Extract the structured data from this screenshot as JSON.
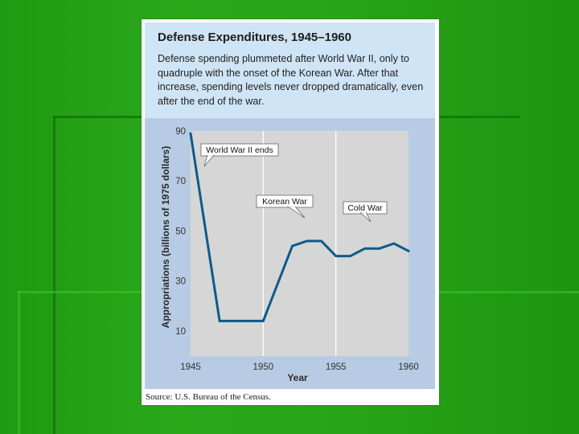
{
  "header": {
    "title": "Defense Expenditures, 1945–1960",
    "description": "Defense spending plummeted after World War II, only to quadruple with the onset of the Korean War. After that increase, spending levels never dropped dramatically, even after the end of the war."
  },
  "footer": {
    "source": "Source: U.S. Bureau of the Census."
  },
  "colors": {
    "line": "#0e5a8c",
    "plot_background": "#d6d6d6",
    "frame_background": "#b7cce4",
    "header_background": "#cfe4f5"
  },
  "chart_data": {
    "type": "line",
    "title": "Defense Expenditures, 1945–1960",
    "xlabel": "Year",
    "ylabel": "Appropriations (billions of 1975 dollars)",
    "xlim": [
      1945,
      1960
    ],
    "ylim": [
      0,
      90
    ],
    "xticks": [
      1945,
      1950,
      1955,
      1960
    ],
    "yticks": [
      10,
      30,
      50,
      70,
      90
    ],
    "grid": "vertical",
    "x": [
      1945,
      1947,
      1950,
      1952,
      1953,
      1954,
      1955,
      1956,
      1957,
      1958,
      1959,
      1960
    ],
    "values": [
      89,
      14,
      14,
      44,
      46,
      46,
      40,
      40,
      43,
      43,
      45,
      42
    ],
    "annotations": [
      {
        "text": "World War II ends",
        "x": 1945.7,
        "y": 73
      },
      {
        "text": "Korean War",
        "x": 1952.8,
        "y": 50
      },
      {
        "text": "Cold War",
        "x": 1958.2,
        "y": 47
      }
    ]
  }
}
